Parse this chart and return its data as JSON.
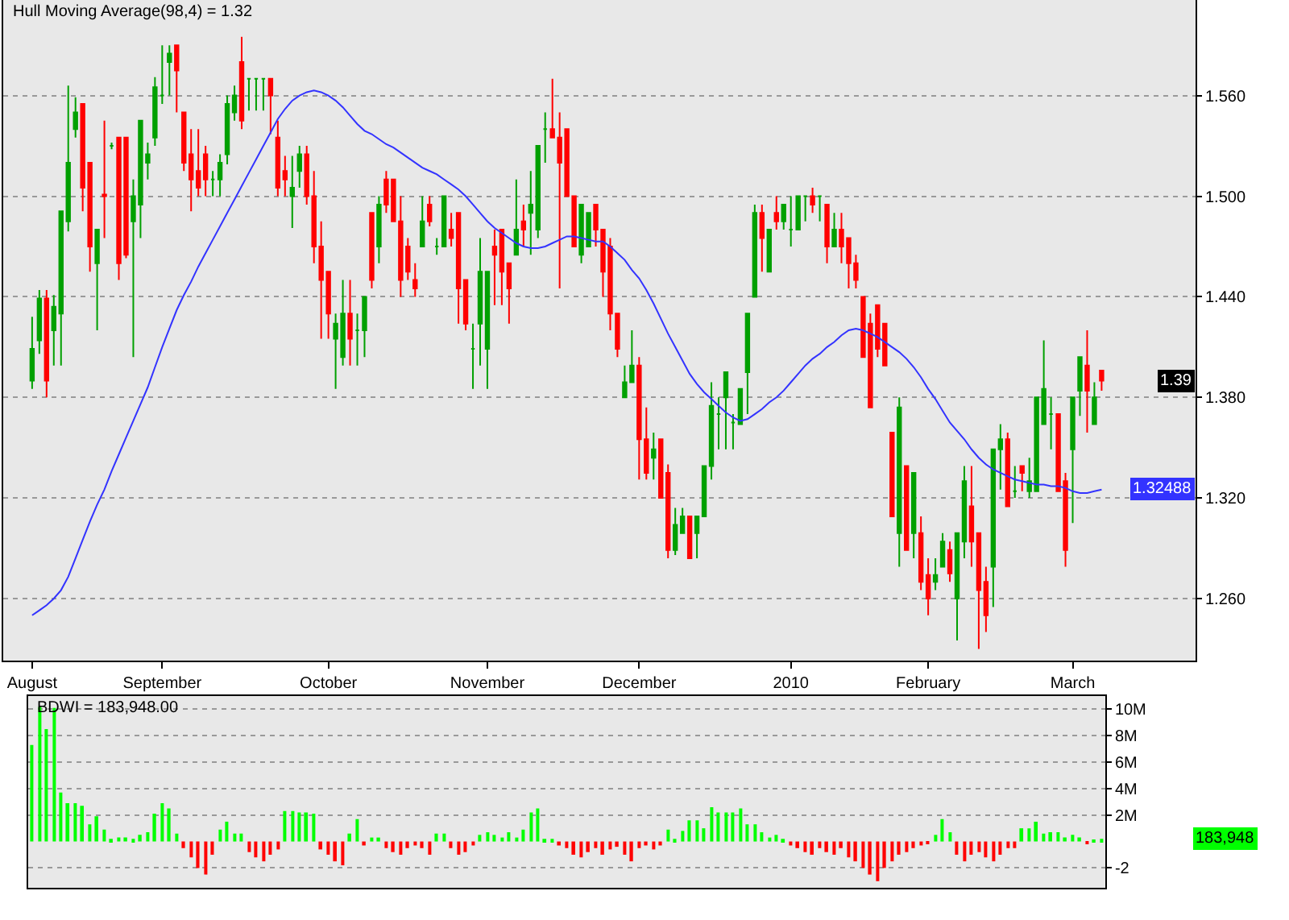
{
  "chart_data": [
    {
      "type": "candlestick",
      "title": "Hull Moving Average(98,4) = 1.32",
      "categories": [
        "August",
        null,
        null,
        null,
        null,
        null,
        null,
        null,
        null,
        null,
        null,
        null,
        null,
        null,
        null,
        null,
        null,
        null,
        "September",
        null,
        null,
        null,
        null,
        null,
        null,
        null,
        null,
        null,
        null,
        null,
        null,
        null,
        null,
        null,
        null,
        null,
        null,
        null,
        null,
        null,
        null,
        "October",
        null,
        null,
        null,
        null,
        null,
        null,
        null,
        null,
        null,
        null,
        null,
        null,
        null,
        null,
        null,
        null,
        null,
        null,
        null,
        null,
        null,
        "November",
        null,
        null,
        null,
        null,
        null,
        null,
        null,
        null,
        null,
        null,
        null,
        null,
        null,
        null,
        null,
        null,
        null,
        null,
        null,
        null,
        "December",
        null,
        null,
        null,
        null,
        null,
        null,
        null,
        null,
        null,
        null,
        null,
        null,
        null,
        null,
        null,
        null,
        null,
        null,
        null,
        null,
        "2010",
        null,
        null,
        null,
        null,
        null,
        null,
        null,
        null,
        null,
        null,
        null,
        null,
        null,
        null,
        null,
        null,
        null,
        null,
        "February",
        null,
        null,
        null,
        null,
        null,
        null,
        null,
        null,
        null,
        null,
        null,
        null,
        null,
        null,
        null,
        null,
        null,
        null,
        null,
        "March",
        null,
        null,
        null,
        null
      ],
      "ohlc": [
        [
          1.39,
          1.428,
          1.385,
          1.409
        ],
        [
          1.414,
          1.444,
          1.406,
          1.439
        ],
        [
          1.439,
          1.444,
          1.38,
          1.39
        ],
        [
          1.42,
          1.441,
          1.399,
          1.434
        ],
        [
          1.43,
          1.491,
          1.399,
          1.491
        ],
        [
          1.485,
          1.566,
          1.479,
          1.52
        ],
        [
          1.54,
          1.559,
          1.535,
          1.55
        ],
        [
          1.555,
          1.555,
          1.491,
          1.505
        ],
        [
          1.52,
          1.52,
          1.455,
          1.47
        ],
        [
          1.46,
          1.48,
          1.42,
          1.48
        ],
        [
          1.501,
          1.545,
          1.475,
          1.5
        ],
        [
          1.53,
          1.532,
          1.528,
          1.53
        ],
        [
          1.535,
          1.535,
          1.45,
          1.46
        ],
        [
          1.535,
          1.535,
          1.463,
          1.465
        ],
        [
          1.485,
          1.51,
          1.404,
          1.5
        ],
        [
          1.495,
          1.545,
          1.475,
          1.545
        ],
        [
          1.52,
          1.532,
          1.51,
          1.525
        ],
        [
          1.535,
          1.571,
          1.53,
          1.565
        ],
        [
          1.56,
          1.59,
          1.555,
          1.56
        ],
        [
          1.58,
          1.59,
          1.56,
          1.585
        ],
        [
          1.59,
          1.59,
          1.55,
          1.575
        ],
        [
          1.55,
          1.55,
          1.515,
          1.52
        ],
        [
          1.525,
          1.54,
          1.491,
          1.51
        ],
        [
          1.515,
          1.54,
          1.5,
          1.505
        ],
        [
          1.525,
          1.53,
          1.5,
          1.51
        ],
        [
          1.51,
          1.515,
          1.5,
          1.51
        ],
        [
          1.51,
          1.525,
          1.5,
          1.52
        ],
        [
          1.525,
          1.56,
          1.519,
          1.555
        ],
        [
          1.55,
          1.566,
          1.545,
          1.56
        ],
        [
          1.58,
          1.595,
          1.54,
          1.545
        ],
        [
          1.57,
          1.57,
          1.551,
          1.57
        ],
        [
          1.57,
          1.57,
          1.551,
          1.57
        ],
        [
          1.57,
          1.57,
          1.551,
          1.57
        ],
        [
          1.57,
          1.57,
          1.537,
          1.56
        ],
        [
          1.535,
          1.545,
          1.5,
          1.505
        ],
        [
          1.515,
          1.524,
          1.5,
          1.51
        ],
        [
          1.5,
          1.524,
          1.481,
          1.505
        ],
        [
          1.515,
          1.53,
          1.505,
          1.525
        ],
        [
          1.525,
          1.53,
          1.495,
          1.5
        ],
        [
          1.5,
          1.515,
          1.46,
          1.47
        ],
        [
          1.47,
          1.485,
          1.415,
          1.45
        ],
        [
          1.455,
          1.455,
          1.415,
          1.43
        ],
        [
          1.415,
          1.43,
          1.385,
          1.424
        ],
        [
          1.404,
          1.45,
          1.399,
          1.43
        ],
        [
          1.43,
          1.45,
          1.399,
          1.415
        ],
        [
          1.42,
          1.43,
          1.399,
          1.42
        ],
        [
          1.42,
          1.44,
          1.404,
          1.44
        ],
        [
          1.49,
          1.49,
          1.445,
          1.45
        ],
        [
          1.47,
          1.5,
          1.46,
          1.495
        ],
        [
          1.51,
          1.515,
          1.49,
          1.495
        ],
        [
          1.51,
          1.51,
          1.485,
          1.485
        ],
        [
          1.485,
          1.5,
          1.44,
          1.45
        ],
        [
          1.47,
          1.475,
          1.45,
          1.455
        ],
        [
          1.45,
          1.46,
          1.44,
          1.445
        ],
        [
          1.47,
          1.5,
          1.47,
          1.485
        ],
        [
          1.495,
          1.5,
          1.482,
          1.485
        ],
        [
          1.47,
          1.475,
          1.465,
          1.47
        ],
        [
          1.47,
          1.5,
          1.47,
          1.5
        ],
        [
          1.48,
          1.49,
          1.47,
          1.475
        ],
        [
          1.49,
          1.49,
          1.424,
          1.445
        ],
        [
          1.45,
          1.45,
          1.42,
          1.424
        ],
        [
          1.409,
          1.424,
          1.385,
          1.409
        ],
        [
          1.424,
          1.475,
          1.399,
          1.455
        ],
        [
          1.409,
          1.455,
          1.385,
          1.455
        ],
        [
          1.47,
          1.48,
          1.435,
          1.465
        ],
        [
          1.48,
          1.48,
          1.435,
          1.455
        ],
        [
          1.46,
          1.46,
          1.424,
          1.445
        ],
        [
          1.465,
          1.51,
          1.465,
          1.48
        ],
        [
          1.485,
          1.495,
          1.47,
          1.48
        ],
        [
          1.49,
          1.515,
          1.465,
          1.495
        ],
        [
          1.48,
          1.53,
          1.475,
          1.53
        ],
        [
          1.54,
          1.55,
          1.52,
          1.54
        ],
        [
          1.54,
          1.57,
          1.535,
          1.535
        ],
        [
          1.535,
          1.55,
          1.445,
          1.52
        ],
        [
          1.54,
          1.54,
          1.5,
          1.5
        ],
        [
          1.5,
          1.5,
          1.47,
          1.47
        ],
        [
          1.465,
          1.495,
          1.46,
          1.495
        ],
        [
          1.47,
          1.49,
          1.47,
          1.49
        ],
        [
          1.495,
          1.495,
          1.47,
          1.48
        ],
        [
          1.48,
          1.48,
          1.44,
          1.455
        ],
        [
          1.47,
          1.475,
          1.42,
          1.43
        ],
        [
          1.43,
          1.43,
          1.404,
          1.409
        ],
        [
          1.38,
          1.399,
          1.38,
          1.389
        ],
        [
          1.389,
          1.42,
          1.389,
          1.399
        ],
        [
          1.399,
          1.404,
          1.331,
          1.355
        ],
        [
          1.355,
          1.374,
          1.331,
          1.335
        ],
        [
          1.344,
          1.359,
          1.331,
          1.349
        ],
        [
          1.355,
          1.355,
          1.32,
          1.32
        ],
        [
          1.335,
          1.34,
          1.284,
          1.289
        ],
        [
          1.289,
          1.314,
          1.286,
          1.304
        ],
        [
          1.299,
          1.314,
          1.299,
          1.309
        ],
        [
          1.309,
          1.309,
          1.284,
          1.284
        ],
        [
          1.299,
          1.309,
          1.284,
          1.309
        ],
        [
          1.309,
          1.339,
          1.309,
          1.339
        ],
        [
          1.339,
          1.389,
          1.331,
          1.375
        ],
        [
          1.37,
          1.38,
          1.349,
          1.37
        ],
        [
          1.38,
          1.395,
          1.349,
          1.395
        ],
        [
          1.365,
          1.37,
          1.349,
          1.365
        ],
        [
          1.364,
          1.385,
          1.364,
          1.385
        ],
        [
          1.395,
          1.43,
          1.37,
          1.43
        ],
        [
          1.44,
          1.495,
          1.44,
          1.49
        ],
        [
          1.49,
          1.495,
          1.455,
          1.475
        ],
        [
          1.455,
          1.48,
          1.455,
          1.48
        ],
        [
          1.49,
          1.5,
          1.48,
          1.485
        ],
        [
          1.485,
          1.495,
          1.48,
          1.495
        ],
        [
          1.48,
          1.5,
          1.47,
          1.48
        ],
        [
          1.48,
          1.5,
          1.48,
          1.5
        ],
        [
          1.5,
          1.5,
          1.485,
          1.5
        ],
        [
          1.5,
          1.505,
          1.49,
          1.495
        ],
        [
          1.5,
          1.5,
          1.485,
          1.5
        ],
        [
          1.495,
          1.495,
          1.46,
          1.47
        ],
        [
          1.47,
          1.49,
          1.47,
          1.48
        ],
        [
          1.48,
          1.49,
          1.46,
          1.47
        ],
        [
          1.475,
          1.475,
          1.445,
          1.46
        ],
        [
          1.46,
          1.465,
          1.445,
          1.45
        ],
        [
          1.44,
          1.44,
          1.404,
          1.404
        ],
        [
          1.424,
          1.43,
          1.374,
          1.374
        ],
        [
          1.435,
          1.435,
          1.404,
          1.409
        ],
        [
          1.424,
          1.424,
          1.399,
          1.399
        ],
        [
          1.359,
          1.359,
          1.309,
          1.309
        ],
        [
          1.299,
          1.38,
          1.279,
          1.374
        ],
        [
          1.339,
          1.339,
          1.289,
          1.289
        ],
        [
          1.299,
          1.335,
          1.284,
          1.335
        ],
        [
          1.299,
          1.309,
          1.265,
          1.27
        ],
        [
          1.274,
          1.284,
          1.25,
          1.26
        ],
        [
          1.27,
          1.284,
          1.265,
          1.274
        ],
        [
          1.279,
          1.299,
          1.279,
          1.294
        ],
        [
          1.289,
          1.294,
          1.27,
          1.275
        ],
        [
          1.26,
          1.299,
          1.235,
          1.299
        ],
        [
          1.294,
          1.339,
          1.284,
          1.33
        ],
        [
          1.315,
          1.339,
          1.279,
          1.294
        ],
        [
          1.299,
          1.299,
          1.23,
          1.265
        ],
        [
          1.27,
          1.279,
          1.24,
          1.25
        ],
        [
          1.279,
          1.349,
          1.255,
          1.349
        ],
        [
          1.349,
          1.364,
          1.325,
          1.355
        ],
        [
          1.355,
          1.359,
          1.315,
          1.315
        ],
        [
          1.324,
          1.339,
          1.32,
          1.324
        ],
        [
          1.339,
          1.339,
          1.324,
          1.335
        ],
        [
          1.324,
          1.344,
          1.32,
          1.33
        ],
        [
          1.324,
          1.38,
          1.324,
          1.38
        ],
        [
          1.364,
          1.414,
          1.364,
          1.385
        ],
        [
          1.37,
          1.38,
          1.349,
          1.37
        ],
        [
          1.37,
          1.37,
          1.324,
          1.324
        ],
        [
          1.33,
          1.335,
          1.279,
          1.289
        ],
        [
          1.349,
          1.38,
          1.305,
          1.38
        ],
        [
          1.384,
          1.404,
          1.369,
          1.404
        ],
        [
          1.399,
          1.42,
          1.359,
          1.384
        ],
        [
          1.364,
          1.389,
          1.364,
          1.38
        ],
        [
          1.396,
          1.396,
          1.384,
          1.39
        ]
      ],
      "colors": [
        "#00a000",
        "#00a000",
        "#ff0000",
        "#00a000",
        "#00a000",
        "#00a000",
        "#00a000",
        "#ff0000",
        "#ff0000",
        "#00a000",
        "#ff0000",
        "#00a000",
        "#ff0000",
        "#ff0000",
        "#00a000",
        "#00a000",
        "#00a000",
        "#00a000",
        "#00a000",
        "#00a000",
        "#ff0000",
        "#ff0000",
        "#ff0000",
        "#ff0000",
        "#ff0000",
        "#00a000",
        "#00a000",
        "#00a000",
        "#00a000",
        "#ff0000",
        "#00a000",
        "#00a000",
        "#00a000",
        "#ff0000",
        "#ff0000",
        "#ff0000",
        "#00a000",
        "#00a000",
        "#ff0000",
        "#ff0000",
        "#ff0000",
        "#ff0000",
        "#00a000",
        "#00a000",
        "#ff0000",
        "#00a000",
        "#00a000",
        "#ff0000",
        "#00a000",
        "#ff0000",
        "#ff0000",
        "#ff0000",
        "#ff0000",
        "#ff0000",
        "#00a000",
        "#ff0000",
        "#00a000",
        "#00a000",
        "#ff0000",
        "#ff0000",
        "#ff0000",
        "#00a000",
        "#00a000",
        "#00a000",
        "#ff0000",
        "#ff0000",
        "#ff0000",
        "#00a000",
        "#ff0000",
        "#00a000",
        "#00a000",
        "#00a000",
        "#ff0000",
        "#ff0000",
        "#ff0000",
        "#ff0000",
        "#00a000",
        "#00a000",
        "#ff0000",
        "#ff0000",
        "#ff0000",
        "#ff0000",
        "#00a000",
        "#00a000",
        "#ff0000",
        "#ff0000",
        "#00a000",
        "#ff0000",
        "#ff0000",
        "#00a000",
        "#00a000",
        "#ff0000",
        "#00a000",
        "#00a000",
        "#00a000",
        "#00a000",
        "#00a000",
        "#00a000",
        "#00a000",
        "#00a000",
        "#00a000",
        "#ff0000",
        "#00a000",
        "#ff0000",
        "#00a000",
        "#00a000",
        "#00a000",
        "#00a000",
        "#ff0000",
        "#00a000",
        "#ff0000",
        "#00a000",
        "#ff0000",
        "#ff0000",
        "#ff0000",
        "#ff0000",
        "#ff0000",
        "#ff0000",
        "#ff0000",
        "#ff0000",
        "#00a000",
        "#ff0000",
        "#00a000",
        "#ff0000",
        "#ff0000",
        "#00a000",
        "#00a000",
        "#ff0000",
        "#00a000",
        "#00a000",
        "#ff0000",
        "#ff0000",
        "#ff0000",
        "#00a000",
        "#00a000",
        "#ff0000",
        "#00a000",
        "#ff0000",
        "#00a000",
        "#00a000",
        "#00a000",
        "#00a000",
        "#ff0000",
        "#ff0000",
        "#00a000",
        "#00a000",
        "#ff0000",
        "#00a000",
        "#ff0000"
      ],
      "series": [
        {
          "type": "line",
          "color": "#3333ff",
          "values": [
            1.25,
            1.253,
            1.256,
            1.26,
            1.265,
            1.273,
            1.284,
            1.295,
            1.306,
            1.316,
            1.325,
            1.336,
            1.346,
            1.356,
            1.366,
            1.376,
            1.386,
            1.398,
            1.41,
            1.421,
            1.432,
            1.441,
            1.449,
            1.458,
            1.466,
            1.474,
            1.482,
            1.49,
            1.498,
            1.506,
            1.514,
            1.522,
            1.53,
            1.538,
            1.546,
            1.552,
            1.557,
            1.56,
            1.562,
            1.563,
            1.562,
            1.56,
            1.557,
            1.553,
            1.548,
            1.543,
            1.539,
            1.537,
            1.534,
            1.531,
            1.529,
            1.526,
            1.523,
            1.52,
            1.517,
            1.515,
            1.513,
            1.51,
            1.507,
            1.504,
            1.5,
            1.495,
            1.49,
            1.485,
            1.481,
            1.478,
            1.475,
            1.472,
            1.47,
            1.469,
            1.469,
            1.47,
            1.472,
            1.474,
            1.476,
            1.476,
            1.475,
            1.474,
            1.473,
            1.473,
            1.47,
            1.466,
            1.462,
            1.456,
            1.451,
            1.444,
            1.436,
            1.427,
            1.418,
            1.41,
            1.402,
            1.394,
            1.388,
            1.383,
            1.379,
            1.375,
            1.371,
            1.368,
            1.366,
            1.367,
            1.37,
            1.373,
            1.377,
            1.38,
            1.384,
            1.389,
            1.394,
            1.399,
            1.403,
            1.406,
            1.41,
            1.413,
            1.417,
            1.42,
            1.421,
            1.42,
            1.418,
            1.416,
            1.413,
            1.41,
            1.407,
            1.403,
            1.398,
            1.392,
            1.385,
            1.379,
            1.372,
            1.365,
            1.36,
            1.355,
            1.349,
            1.344,
            1.34,
            1.337,
            1.335,
            1.333,
            1.331,
            1.33,
            1.329,
            1.328,
            1.328,
            1.327,
            1.327,
            1.326,
            1.324,
            1.323,
            1.323,
            1.324,
            1.325
          ]
        }
      ],
      "ylim": [
        1.223,
        1.617
      ],
      "yticks": [
        {
          "value": 1.26,
          "label": "1.260"
        },
        {
          "value": 1.32,
          "label": "1.320"
        },
        {
          "value": 1.38,
          "label": "1.380"
        },
        {
          "value": 1.44,
          "label": "1.440"
        },
        {
          "value": 1.5,
          "label": "1.500"
        },
        {
          "value": 1.56,
          "label": "1.560"
        }
      ],
      "grid": "y",
      "annotations": [
        "1.39",
        "1.32488"
      ]
    },
    {
      "type": "bar",
      "title": "BDWI = 183,948.00",
      "categories": [
        null,
        null,
        null,
        null,
        null,
        null,
        null,
        null,
        null,
        null,
        null,
        null,
        null,
        null,
        null,
        null,
        null,
        null,
        null,
        null,
        null,
        null,
        null,
        null,
        null,
        null,
        null,
        null,
        null,
        null,
        null,
        null,
        null,
        null,
        null,
        null,
        null,
        null,
        null,
        null,
        null,
        null,
        null,
        null,
        null,
        null,
        null,
        null,
        null,
        null,
        null,
        null,
        null,
        null,
        null,
        null,
        null,
        null,
        null,
        null,
        null,
        null,
        null,
        null,
        null,
        null,
        null,
        null,
        null,
        null,
        null,
        null,
        null,
        null,
        null,
        null,
        null,
        null,
        null,
        null,
        null,
        null,
        null,
        null,
        null,
        null,
        null,
        null,
        null,
        null,
        null,
        null,
        null,
        null,
        null,
        null,
        null,
        null,
        null,
        null,
        null,
        null,
        null,
        null,
        null,
        null,
        null,
        null,
        null,
        null,
        null,
        null,
        null,
        null,
        null,
        null,
        null,
        null,
        null,
        null,
        null,
        null,
        null,
        null,
        null,
        null,
        null,
        null,
        null,
        null,
        null,
        null,
        null,
        null,
        null,
        null,
        null,
        null,
        null,
        null,
        null,
        null,
        null,
        null,
        null,
        null,
        null,
        null,
        null
      ],
      "values": [
        7.3,
        10.2,
        8.5,
        10.1,
        3.7,
        2.9,
        2.9,
        2.7,
        1.3,
        1.9,
        0.9,
        0.2,
        0.3,
        0.3,
        0.2,
        0.5,
        0.7,
        2.1,
        2.9,
        2.5,
        0.6,
        -0.5,
        -1.2,
        -2.0,
        -2.5,
        -1.0,
        0.9,
        1.5,
        0.6,
        0.6,
        -0.8,
        -1.2,
        -1.5,
        -1.0,
        -0.6,
        2.3,
        2.3,
        2.2,
        2.2,
        2.1,
        -0.6,
        -1.0,
        -1.5,
        -1.8,
        0.6,
        1.7,
        -0.3,
        0.3,
        0.3,
        -0.5,
        -0.8,
        -1.0,
        -0.5,
        -0.3,
        -0.5,
        -1.0,
        0.6,
        0.6,
        -0.5,
        -1.0,
        -0.8,
        -0.3,
        0.5,
        0.7,
        0.5,
        0.3,
        0.7,
        0.3,
        0.9,
        2.2,
        2.5,
        0.2,
        0.2,
        -0.3,
        -0.5,
        -1.0,
        -1.2,
        -0.8,
        -0.5,
        -1.0,
        -0.6,
        -0.4,
        -1.0,
        -1.5,
        -0.5,
        -0.3,
        -0.6,
        -0.3,
        0.9,
        0.2,
        0.8,
        1.6,
        1.6,
        1.0,
        2.6,
        2.2,
        2.2,
        2.2,
        2.5,
        1.3,
        1.3,
        0.7,
        0.3,
        0.5,
        0.2,
        -0.3,
        -0.5,
        -0.8,
        -1.0,
        -0.5,
        -0.8,
        -1.0,
        -0.5,
        -1.2,
        -1.5,
        -2.0,
        -2.5,
        -3.0,
        -2.0,
        -1.5,
        -1.0,
        -0.8,
        -0.5,
        -0.3,
        -0.2,
        0.5,
        1.7,
        0.7,
        -1.0,
        -1.5,
        -1.0,
        -0.8,
        -1.2,
        -1.5,
        -1.0,
        -0.5,
        -0.5,
        1.0,
        1.0,
        1.5,
        0.6,
        0.7,
        0.7,
        0.3,
        0.5,
        0.3,
        -0.2,
        0.1,
        0.2
      ],
      "colors": [
        "#00ff00",
        "#00ff00",
        "#00ff00",
        "#00ff00",
        "#00ff00",
        "#00ff00",
        "#00ff00",
        "#00ff00",
        "#00ff00",
        "#00ff00",
        "#00ff00",
        "#00ff00",
        "#00ff00",
        "#00ff00",
        "#00ff00",
        "#00ff00",
        "#00ff00",
        "#00ff00",
        "#00ff00",
        "#00ff00",
        "#00ff00",
        "#ff0000",
        "#ff0000",
        "#ff0000",
        "#ff0000",
        "#ff0000",
        "#00ff00",
        "#00ff00",
        "#00ff00",
        "#00ff00",
        "#ff0000",
        "#ff0000",
        "#ff0000",
        "#ff0000",
        "#ff0000",
        "#00ff00",
        "#00ff00",
        "#00ff00",
        "#00ff00",
        "#00ff00",
        "#ff0000",
        "#ff0000",
        "#ff0000",
        "#ff0000",
        "#00ff00",
        "#00ff00",
        "#ff0000",
        "#00ff00",
        "#00ff00",
        "#ff0000",
        "#ff0000",
        "#ff0000",
        "#ff0000",
        "#ff0000",
        "#ff0000",
        "#ff0000",
        "#00ff00",
        "#00ff00",
        "#ff0000",
        "#ff0000",
        "#ff0000",
        "#ff0000",
        "#00ff00",
        "#00ff00",
        "#00ff00",
        "#00ff00",
        "#00ff00",
        "#00ff00",
        "#00ff00",
        "#00ff00",
        "#00ff00",
        "#00ff00",
        "#00ff00",
        "#ff0000",
        "#ff0000",
        "#ff0000",
        "#ff0000",
        "#ff0000",
        "#ff0000",
        "#ff0000",
        "#ff0000",
        "#ff0000",
        "#ff0000",
        "#ff0000",
        "#ff0000",
        "#ff0000",
        "#ff0000",
        "#ff0000",
        "#00ff00",
        "#00ff00",
        "#00ff00",
        "#00ff00",
        "#00ff00",
        "#00ff00",
        "#00ff00",
        "#00ff00",
        "#00ff00",
        "#00ff00",
        "#00ff00",
        "#00ff00",
        "#00ff00",
        "#00ff00",
        "#00ff00",
        "#00ff00",
        "#00ff00",
        "#ff0000",
        "#ff0000",
        "#ff0000",
        "#ff0000",
        "#ff0000",
        "#ff0000",
        "#ff0000",
        "#ff0000",
        "#ff0000",
        "#ff0000",
        "#ff0000",
        "#ff0000",
        "#ff0000",
        "#ff0000",
        "#ff0000",
        "#ff0000",
        "#ff0000",
        "#ff0000",
        "#ff0000",
        "#ff0000",
        "#00ff00",
        "#00ff00",
        "#00ff00",
        "#ff0000",
        "#ff0000",
        "#ff0000",
        "#ff0000",
        "#ff0000",
        "#ff0000",
        "#ff0000",
        "#ff0000",
        "#ff0000",
        "#00ff00",
        "#00ff00",
        "#00ff00",
        "#00ff00",
        "#00ff00",
        "#00ff00",
        "#00ff00",
        "#00ff00",
        "#00ff00",
        "#ff0000",
        "#00ff00",
        "#00ff00"
      ],
      "ylim": [
        -3.5,
        11
      ],
      "yticks": [
        {
          "value": -2,
          "label": "-2"
        },
        {
          "value": 2,
          "label": "2M"
        },
        {
          "value": 4,
          "label": "4M"
        },
        {
          "value": 6,
          "label": "6M"
        },
        {
          "value": 8,
          "label": "8M"
        },
        {
          "value": 10,
          "label": "10M"
        }
      ],
      "grid": "y",
      "annotations": [
        "183,948"
      ]
    }
  ]
}
